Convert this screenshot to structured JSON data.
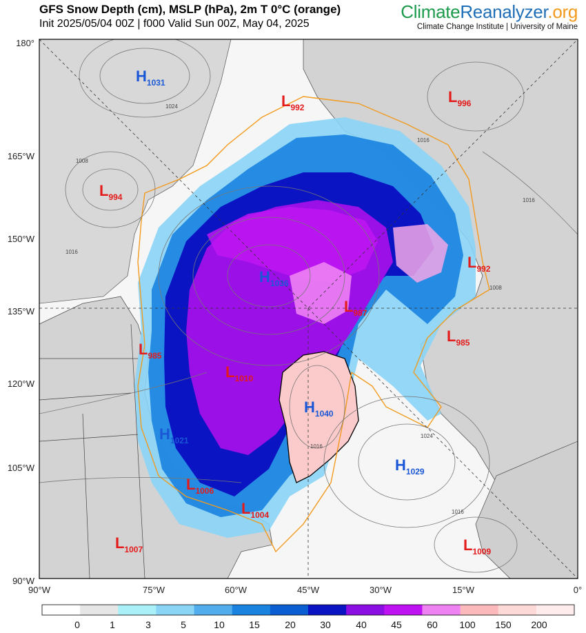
{
  "header": {
    "title": "GFS Snow Depth (cm), MSLP (hPa), 2m T 0°C (orange)",
    "subtitle": "Init 2025/05/04 00Z | f000 Valid Sun 00Z, May 04, 2025"
  },
  "brand": {
    "logo_part1": "Climate",
    "logo_part2": "Reanalyzer",
    "logo_part3": ".org",
    "tagline": "Climate Change Institute | University of Maine",
    "colors": {
      "green": "#1b9a4b",
      "blue": "#1f6fb8",
      "orange": "#f29a1d"
    }
  },
  "axes": {
    "left_ticks": [
      "180°",
      "165°W",
      "150°W",
      "135°W",
      "120°W",
      "105°W",
      "90°W"
    ],
    "bottom_ticks": [
      "90°W",
      "75°W",
      "60°W",
      "45°W",
      "30°W",
      "15°W",
      "0°"
    ]
  },
  "pressure_centers": [
    {
      "type": "H",
      "value": "1031"
    },
    {
      "type": "L",
      "value": "992"
    },
    {
      "type": "L",
      "value": "996"
    },
    {
      "type": "L",
      "value": "994"
    },
    {
      "type": "H",
      "value": "1036"
    },
    {
      "type": "L",
      "value": "992"
    },
    {
      "type": "L",
      "value": "987"
    },
    {
      "type": "L",
      "value": "985"
    },
    {
      "type": "L",
      "value": "985"
    },
    {
      "type": "L",
      "value": "1010"
    },
    {
      "type": "H",
      "value": "1040"
    },
    {
      "type": "H",
      "value": "1021"
    },
    {
      "type": "H",
      "value": "1029"
    },
    {
      "type": "L",
      "value": "1006"
    },
    {
      "type": "L",
      "value": "1004"
    },
    {
      "type": "L",
      "value": "1007"
    },
    {
      "type": "L",
      "value": "1009"
    }
  ],
  "isobar_labels": [
    "1024",
    "1008",
    "1016",
    "1016",
    "1016",
    "1008",
    "1024",
    "1016",
    "1016"
  ],
  "legend": {
    "labels": [
      "0",
      "1",
      "3",
      "5",
      "10",
      "15",
      "20",
      "30",
      "40",
      "45",
      "60",
      "100",
      "150",
      "200"
    ],
    "colors": [
      "#ffffff",
      "#e6e6e6",
      "#a9f0f8",
      "#8ad4f6",
      "#52adec",
      "#1a83e0",
      "#0a5ed1",
      "#0a14c2",
      "#8b0ee3",
      "#bf12f3",
      "#ee82f3",
      "#fbb9bc",
      "#fcd9d7",
      "#fdeceb"
    ]
  }
}
